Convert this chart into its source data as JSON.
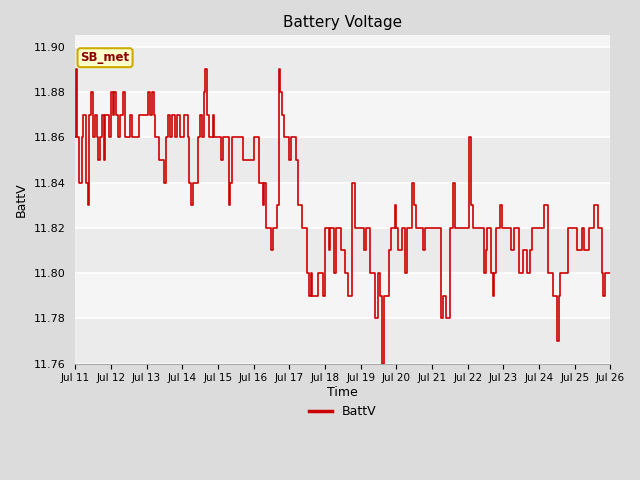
{
  "title": "Battery Voltage",
  "xlabel": "Time",
  "ylabel": "BattV",
  "ylim": [
    11.76,
    11.905
  ],
  "yticks": [
    11.76,
    11.78,
    11.8,
    11.82,
    11.84,
    11.86,
    11.88,
    11.9
  ],
  "line_color": "#CC0000",
  "line_width": 1.2,
  "bg_color": "#DCDCDC",
  "plot_bg_color_light": "#F5F5F5",
  "plot_bg_color_dark": "#E8E8E8",
  "legend_label": "BattV",
  "annotation_text": "SB_met",
  "annotation_bg": "#FFFFCC",
  "annotation_border": "#CCAA00",
  "x_start_day": 11,
  "x_end_day": 26,
  "x_tick_days": [
    11,
    12,
    13,
    14,
    15,
    16,
    17,
    18,
    19,
    20,
    21,
    22,
    23,
    24,
    25,
    26
  ],
  "time_series": [
    [
      11.0,
      11.86
    ],
    [
      11.02,
      11.89
    ],
    [
      11.04,
      11.87
    ],
    [
      11.06,
      11.86
    ],
    [
      11.1,
      11.84
    ],
    [
      11.14,
      11.84
    ],
    [
      11.18,
      11.86
    ],
    [
      11.22,
      11.87
    ],
    [
      11.26,
      11.87
    ],
    [
      11.3,
      11.84
    ],
    [
      11.35,
      11.83
    ],
    [
      11.4,
      11.87
    ],
    [
      11.45,
      11.88
    ],
    [
      11.5,
      11.86
    ],
    [
      11.55,
      11.87
    ],
    [
      11.6,
      11.86
    ],
    [
      11.65,
      11.85
    ],
    [
      11.7,
      11.86
    ],
    [
      11.75,
      11.87
    ],
    [
      11.8,
      11.85
    ],
    [
      11.85,
      11.87
    ],
    [
      11.9,
      11.87
    ],
    [
      11.95,
      11.86
    ],
    [
      12.0,
      11.88
    ],
    [
      12.05,
      11.87
    ],
    [
      12.1,
      11.88
    ],
    [
      12.15,
      11.87
    ],
    [
      12.2,
      11.86
    ],
    [
      12.25,
      11.87
    ],
    [
      12.3,
      11.87
    ],
    [
      12.35,
      11.88
    ],
    [
      12.4,
      11.86
    ],
    [
      12.45,
      11.86
    ],
    [
      12.5,
      11.86
    ],
    [
      12.55,
      11.87
    ],
    [
      12.6,
      11.86
    ],
    [
      12.65,
      11.86
    ],
    [
      12.7,
      11.86
    ],
    [
      12.75,
      11.86
    ],
    [
      12.8,
      11.87
    ],
    [
      12.9,
      11.87
    ],
    [
      13.0,
      11.87
    ],
    [
      13.05,
      11.88
    ],
    [
      13.1,
      11.87
    ],
    [
      13.15,
      11.88
    ],
    [
      13.2,
      11.87
    ],
    [
      13.25,
      11.86
    ],
    [
      13.3,
      11.86
    ],
    [
      13.35,
      11.85
    ],
    [
      13.4,
      11.85
    ],
    [
      13.45,
      11.85
    ],
    [
      13.5,
      11.84
    ],
    [
      13.55,
      11.86
    ],
    [
      13.6,
      11.87
    ],
    [
      13.65,
      11.86
    ],
    [
      13.7,
      11.87
    ],
    [
      13.75,
      11.87
    ],
    [
      13.8,
      11.86
    ],
    [
      13.85,
      11.87
    ],
    [
      13.9,
      11.87
    ],
    [
      13.95,
      11.86
    ],
    [
      14.0,
      11.86
    ],
    [
      14.05,
      11.87
    ],
    [
      14.1,
      11.87
    ],
    [
      14.15,
      11.86
    ],
    [
      14.2,
      11.84
    ],
    [
      14.25,
      11.83
    ],
    [
      14.3,
      11.84
    ],
    [
      14.35,
      11.84
    ],
    [
      14.4,
      11.84
    ],
    [
      14.45,
      11.86
    ],
    [
      14.5,
      11.87
    ],
    [
      14.55,
      11.86
    ],
    [
      14.6,
      11.88
    ],
    [
      14.65,
      11.89
    ],
    [
      14.7,
      11.87
    ],
    [
      14.75,
      11.86
    ],
    [
      14.8,
      11.86
    ],
    [
      14.85,
      11.87
    ],
    [
      14.9,
      11.86
    ],
    [
      14.95,
      11.86
    ],
    [
      15.0,
      11.86
    ],
    [
      15.05,
      11.86
    ],
    [
      15.1,
      11.85
    ],
    [
      15.15,
      11.86
    ],
    [
      15.2,
      11.86
    ],
    [
      15.25,
      11.86
    ],
    [
      15.3,
      11.83
    ],
    [
      15.35,
      11.84
    ],
    [
      15.4,
      11.86
    ],
    [
      15.45,
      11.86
    ],
    [
      15.5,
      11.86
    ],
    [
      15.55,
      11.86
    ],
    [
      15.6,
      11.86
    ],
    [
      15.65,
      11.86
    ],
    [
      15.7,
      11.85
    ],
    [
      15.75,
      11.85
    ],
    [
      15.8,
      11.85
    ],
    [
      15.85,
      11.85
    ],
    [
      15.9,
      11.85
    ],
    [
      15.95,
      11.85
    ],
    [
      16.0,
      11.86
    ],
    [
      16.05,
      11.86
    ],
    [
      16.1,
      11.86
    ],
    [
      16.15,
      11.84
    ],
    [
      16.2,
      11.84
    ],
    [
      16.25,
      11.83
    ],
    [
      16.3,
      11.84
    ],
    [
      16.35,
      11.82
    ],
    [
      16.4,
      11.82
    ],
    [
      16.45,
      11.82
    ],
    [
      16.5,
      11.81
    ],
    [
      16.55,
      11.82
    ],
    [
      16.6,
      11.82
    ],
    [
      16.65,
      11.83
    ],
    [
      16.7,
      11.89
    ],
    [
      16.75,
      11.88
    ],
    [
      16.8,
      11.87
    ],
    [
      16.85,
      11.86
    ],
    [
      16.9,
      11.86
    ],
    [
      16.95,
      11.86
    ],
    [
      17.0,
      11.85
    ],
    [
      17.05,
      11.86
    ],
    [
      17.1,
      11.86
    ],
    [
      17.15,
      11.86
    ],
    [
      17.2,
      11.85
    ],
    [
      17.25,
      11.83
    ],
    [
      17.3,
      11.83
    ],
    [
      17.35,
      11.82
    ],
    [
      17.4,
      11.82
    ],
    [
      17.45,
      11.82
    ],
    [
      17.5,
      11.8
    ],
    [
      17.55,
      11.79
    ],
    [
      17.6,
      11.8
    ],
    [
      17.65,
      11.79
    ],
    [
      17.7,
      11.79
    ],
    [
      17.75,
      11.79
    ],
    [
      17.8,
      11.8
    ],
    [
      17.85,
      11.8
    ],
    [
      17.9,
      11.8
    ],
    [
      17.95,
      11.79
    ],
    [
      18.0,
      11.82
    ],
    [
      18.05,
      11.82
    ],
    [
      18.1,
      11.81
    ],
    [
      18.15,
      11.82
    ],
    [
      18.2,
      11.82
    ],
    [
      18.25,
      11.8
    ],
    [
      18.3,
      11.82
    ],
    [
      18.35,
      11.82
    ],
    [
      18.4,
      11.82
    ],
    [
      18.45,
      11.81
    ],
    [
      18.5,
      11.81
    ],
    [
      18.55,
      11.8
    ],
    [
      18.6,
      11.8
    ],
    [
      18.65,
      11.79
    ],
    [
      18.7,
      11.79
    ],
    [
      18.75,
      11.84
    ],
    [
      18.8,
      11.84
    ],
    [
      18.85,
      11.82
    ],
    [
      18.9,
      11.82
    ],
    [
      18.95,
      11.82
    ],
    [
      19.0,
      11.82
    ],
    [
      19.05,
      11.82
    ],
    [
      19.1,
      11.81
    ],
    [
      19.15,
      11.82
    ],
    [
      19.2,
      11.82
    ],
    [
      19.25,
      11.8
    ],
    [
      19.3,
      11.8
    ],
    [
      19.35,
      11.8
    ],
    [
      19.4,
      11.78
    ],
    [
      19.45,
      11.78
    ],
    [
      19.5,
      11.8
    ],
    [
      19.55,
      11.79
    ],
    [
      19.6,
      11.76
    ],
    [
      19.65,
      11.79
    ],
    [
      19.7,
      11.79
    ],
    [
      19.75,
      11.79
    ],
    [
      19.8,
      11.81
    ],
    [
      19.85,
      11.82
    ],
    [
      19.9,
      11.82
    ],
    [
      19.95,
      11.83
    ],
    [
      20.0,
      11.82
    ],
    [
      20.05,
      11.81
    ],
    [
      20.1,
      11.81
    ],
    [
      20.15,
      11.82
    ],
    [
      20.2,
      11.82
    ],
    [
      20.25,
      11.8
    ],
    [
      20.3,
      11.82
    ],
    [
      20.35,
      11.82
    ],
    [
      20.4,
      11.82
    ],
    [
      20.45,
      11.84
    ],
    [
      20.5,
      11.83
    ],
    [
      20.55,
      11.82
    ],
    [
      20.6,
      11.82
    ],
    [
      20.65,
      11.82
    ],
    [
      20.7,
      11.82
    ],
    [
      20.75,
      11.81
    ],
    [
      20.8,
      11.82
    ],
    [
      20.85,
      11.82
    ],
    [
      20.9,
      11.82
    ],
    [
      20.95,
      11.82
    ],
    [
      21.0,
      11.82
    ],
    [
      21.05,
      11.82
    ],
    [
      21.1,
      11.82
    ],
    [
      21.15,
      11.82
    ],
    [
      21.2,
      11.82
    ],
    [
      21.25,
      11.78
    ],
    [
      21.3,
      11.79
    ],
    [
      21.35,
      11.79
    ],
    [
      21.4,
      11.78
    ],
    [
      21.45,
      11.78
    ],
    [
      21.5,
      11.82
    ],
    [
      21.55,
      11.82
    ],
    [
      21.6,
      11.84
    ],
    [
      21.65,
      11.82
    ],
    [
      21.7,
      11.82
    ],
    [
      21.75,
      11.82
    ],
    [
      21.8,
      11.82
    ],
    [
      21.85,
      11.82
    ],
    [
      21.9,
      11.82
    ],
    [
      21.95,
      11.82
    ],
    [
      22.0,
      11.82
    ],
    [
      22.05,
      11.86
    ],
    [
      22.1,
      11.83
    ],
    [
      22.15,
      11.82
    ],
    [
      22.2,
      11.82
    ],
    [
      22.25,
      11.82
    ],
    [
      22.3,
      11.82
    ],
    [
      22.35,
      11.82
    ],
    [
      22.4,
      11.82
    ],
    [
      22.45,
      11.8
    ],
    [
      22.5,
      11.81
    ],
    [
      22.55,
      11.82
    ],
    [
      22.6,
      11.82
    ],
    [
      22.65,
      11.8
    ],
    [
      22.7,
      11.79
    ],
    [
      22.75,
      11.8
    ],
    [
      22.8,
      11.82
    ],
    [
      22.85,
      11.82
    ],
    [
      22.9,
      11.83
    ],
    [
      22.95,
      11.82
    ],
    [
      23.0,
      11.82
    ],
    [
      23.05,
      11.82
    ],
    [
      23.1,
      11.82
    ],
    [
      23.15,
      11.82
    ],
    [
      23.2,
      11.81
    ],
    [
      23.25,
      11.81
    ],
    [
      23.3,
      11.82
    ],
    [
      23.35,
      11.82
    ],
    [
      23.4,
      11.82
    ],
    [
      23.45,
      11.8
    ],
    [
      23.5,
      11.8
    ],
    [
      23.55,
      11.81
    ],
    [
      23.6,
      11.81
    ],
    [
      23.65,
      11.8
    ],
    [
      23.7,
      11.8
    ],
    [
      23.75,
      11.81
    ],
    [
      23.8,
      11.82
    ],
    [
      23.85,
      11.82
    ],
    [
      23.9,
      11.82
    ],
    [
      23.95,
      11.82
    ],
    [
      24.0,
      11.82
    ],
    [
      24.05,
      11.82
    ],
    [
      24.1,
      11.82
    ],
    [
      24.15,
      11.83
    ],
    [
      24.2,
      11.83
    ],
    [
      24.25,
      11.8
    ],
    [
      24.3,
      11.8
    ],
    [
      24.35,
      11.8
    ],
    [
      24.4,
      11.79
    ],
    [
      24.45,
      11.79
    ],
    [
      24.5,
      11.77
    ],
    [
      24.55,
      11.79
    ],
    [
      24.6,
      11.8
    ],
    [
      24.65,
      11.8
    ],
    [
      24.7,
      11.8
    ],
    [
      24.75,
      11.8
    ],
    [
      24.8,
      11.82
    ],
    [
      24.85,
      11.82
    ],
    [
      24.9,
      11.82
    ],
    [
      24.95,
      11.82
    ],
    [
      25.0,
      11.82
    ],
    [
      25.05,
      11.81
    ],
    [
      25.1,
      11.81
    ],
    [
      25.2,
      11.82
    ],
    [
      25.25,
      11.81
    ],
    [
      25.3,
      11.81
    ],
    [
      25.4,
      11.82
    ],
    [
      25.45,
      11.82
    ],
    [
      25.5,
      11.82
    ],
    [
      25.55,
      11.83
    ],
    [
      25.6,
      11.83
    ],
    [
      25.65,
      11.82
    ],
    [
      25.7,
      11.82
    ],
    [
      25.75,
      11.8
    ],
    [
      25.8,
      11.79
    ],
    [
      25.85,
      11.8
    ],
    [
      25.9,
      11.8
    ],
    [
      25.95,
      11.8
    ],
    [
      26.0,
      11.8
    ]
  ]
}
